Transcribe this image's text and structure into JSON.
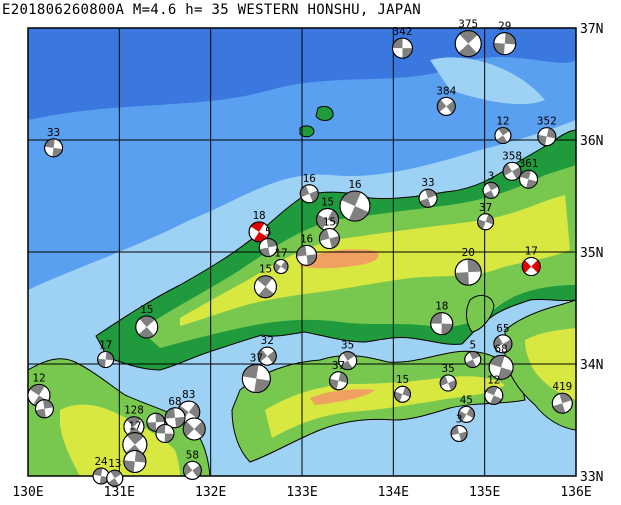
{
  "title": "E201806260800A M=4.6 h= 35 WESTERN HONSHU, JAPAN",
  "lon_labels": [
    "130E",
    "131E",
    "132E",
    "133E",
    "134E",
    "135E",
    "136E"
  ],
  "lat_labels": [
    "37N",
    "36N",
    "35N",
    "34N",
    "33N"
  ],
  "colors": {
    "deep_sea": "#3a78e0",
    "sea": "#5aa0f0",
    "shallow": "#9ed2f5",
    "lowland": "#1f9a3c",
    "mid": "#78c850",
    "high": "#d8e840",
    "peak": "#f0a060",
    "grid": "#000000",
    "mechanism_dark": "#808080",
    "mechanism_highlight": "#e00000"
  },
  "events": [
    {
      "label": "342",
      "lon": 134.1,
      "lat": 36.82,
      "r": 10
    },
    {
      "label": "375",
      "lon": 134.82,
      "lat": 36.86,
      "r": 13
    },
    {
      "label": "29",
      "lon": 135.22,
      "lat": 36.86,
      "r": 11
    },
    {
      "label": "384",
      "lon": 134.58,
      "lat": 36.3,
      "r": 9
    },
    {
      "label": "33",
      "lon": 130.28,
      "lat": 35.93,
      "r": 9
    },
    {
      "label": "12",
      "lon": 135.2,
      "lat": 36.04,
      "r": 8
    },
    {
      "label": "352",
      "lon": 135.68,
      "lat": 36.03,
      "r": 9
    },
    {
      "label": "358",
      "lon": 135.3,
      "lat": 35.72,
      "r": 9
    },
    {
      "label": "361",
      "lon": 135.48,
      "lat": 35.65,
      "r": 9
    },
    {
      "label": "3",
      "lon": 135.07,
      "lat": 35.55,
      "r": 8
    },
    {
      "label": "37",
      "lon": 135.01,
      "lat": 35.27,
      "r": 8
    },
    {
      "label": "16",
      "lon": 133.08,
      "lat": 35.52,
      "r": 9
    },
    {
      "label": "16",
      "lon": 133.58,
      "lat": 35.41,
      "r": 15
    },
    {
      "label": "33",
      "lon": 134.38,
      "lat": 35.48,
      "r": 9
    },
    {
      "label": "15",
      "lon": 133.28,
      "lat": 35.29,
      "r": 11
    },
    {
      "label": "15",
      "lon": 133.3,
      "lat": 35.12,
      "r": 10
    },
    {
      "label": "18",
      "lon": 132.53,
      "lat": 35.18,
      "r": 10,
      "highlight": true
    },
    {
      "label": "5",
      "lon": 132.63,
      "lat": 35.04,
      "r": 9
    },
    {
      "label": "17",
      "lon": 132.77,
      "lat": 34.87,
      "r": 7
    },
    {
      "label": "16",
      "lon": 133.05,
      "lat": 34.97,
      "r": 10
    },
    {
      "label": "15",
      "lon": 132.6,
      "lat": 34.69,
      "r": 11
    },
    {
      "label": "20",
      "lon": 134.82,
      "lat": 34.82,
      "r": 13
    },
    {
      "label": "17",
      "lon": 135.51,
      "lat": 34.87,
      "r": 9,
      "highlight": true
    },
    {
      "label": "18",
      "lon": 134.53,
      "lat": 34.36,
      "r": 11
    },
    {
      "label": "15",
      "lon": 131.3,
      "lat": 34.33,
      "r": 11
    },
    {
      "label": "17",
      "lon": 130.85,
      "lat": 34.04,
      "r": 8
    },
    {
      "label": "32",
      "lon": 132.62,
      "lat": 34.07,
      "r": 9
    },
    {
      "label": "37",
      "lon": 132.5,
      "lat": 33.87,
      "r": 14
    },
    {
      "label": "35",
      "lon": 133.5,
      "lat": 34.03,
      "r": 9
    },
    {
      "label": "37",
      "lon": 133.4,
      "lat": 33.85,
      "r": 9
    },
    {
      "label": "65",
      "lon": 135.2,
      "lat": 34.18,
      "r": 9
    },
    {
      "label": "68",
      "lon": 135.18,
      "lat": 33.97,
      "r": 12
    },
    {
      "label": "5",
      "lon": 134.87,
      "lat": 34.04,
      "r": 8
    },
    {
      "label": "15",
      "lon": 134.1,
      "lat": 33.73,
      "r": 8
    },
    {
      "label": "35",
      "lon": 134.6,
      "lat": 33.83,
      "r": 8
    },
    {
      "label": "12",
      "lon": 135.1,
      "lat": 33.72,
      "r": 9
    },
    {
      "label": "419",
      "lon": 135.85,
      "lat": 33.65,
      "r": 10
    },
    {
      "label": "45",
      "lon": 134.8,
      "lat": 33.55,
      "r": 8
    },
    {
      "label": "3",
      "lon": 134.72,
      "lat": 33.38,
      "r": 8
    },
    {
      "label": "12",
      "lon": 130.12,
      "lat": 33.72,
      "r": 11
    },
    {
      "label": "",
      "lon": 130.18,
      "lat": 33.6,
      "r": 9
    },
    {
      "label": "83",
      "lon": 131.76,
      "lat": 33.57,
      "r": 11
    },
    {
      "label": "68",
      "lon": 131.61,
      "lat": 33.52,
      "r": 10
    },
    {
      "label": "128",
      "lon": 131.16,
      "lat": 33.44,
      "r": 10
    },
    {
      "label": "",
      "lon": 131.4,
      "lat": 33.48,
      "r": 9
    },
    {
      "label": "",
      "lon": 131.82,
      "lat": 33.42,
      "r": 11
    },
    {
      "label": "",
      "lon": 131.5,
      "lat": 33.38,
      "r": 9
    },
    {
      "label": "17",
      "lon": 131.17,
      "lat": 33.28,
      "r": 12
    },
    {
      "label": "",
      "lon": 131.17,
      "lat": 33.13,
      "r": 11
    },
    {
      "label": "58",
      "lon": 131.8,
      "lat": 33.05,
      "r": 9
    },
    {
      "label": "24",
      "lon": 130.8,
      "lat": 33.0,
      "r": 8
    },
    {
      "label": "13",
      "lon": 130.95,
      "lat": 32.98,
      "r": 8
    }
  ]
}
